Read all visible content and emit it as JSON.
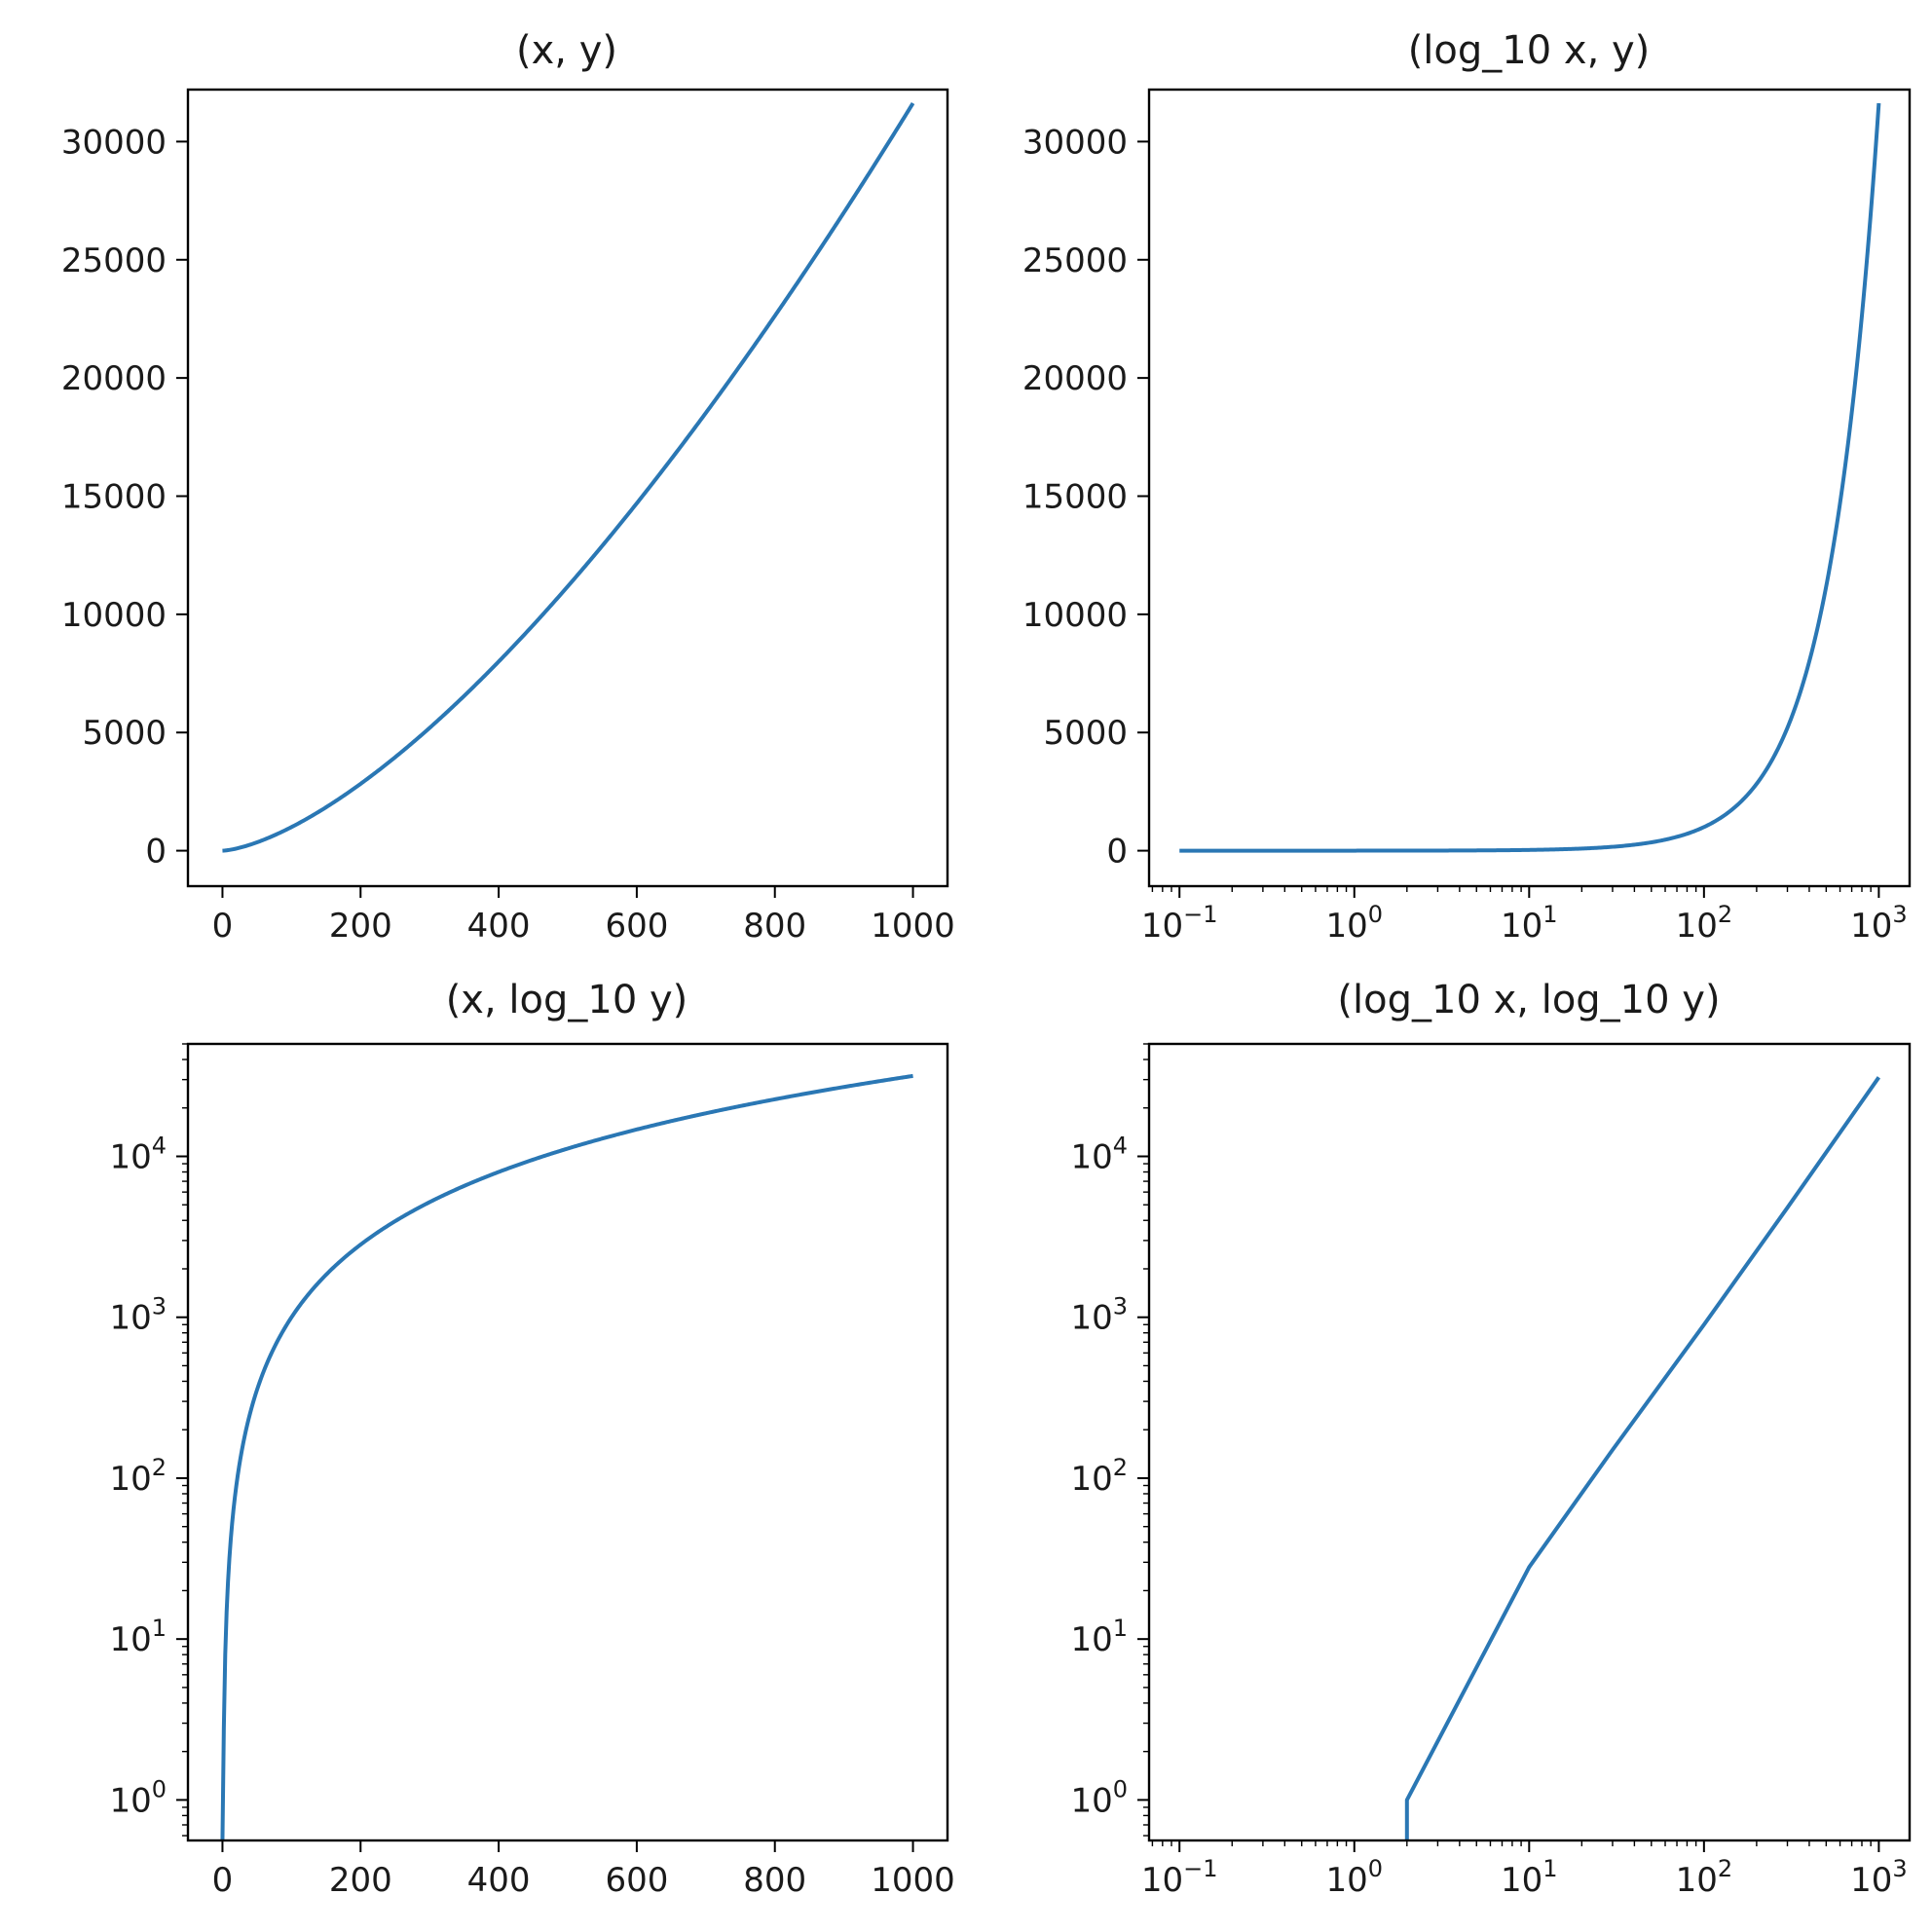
{
  "figure": {
    "layout": "2x2 grid"
  },
  "chart_data": [
    {
      "type": "line",
      "title": "(x, y)",
      "xscale": "linear",
      "yscale": "linear",
      "xlim": [
        -50,
        1050
      ],
      "ylim": [
        -1500,
        32200
      ],
      "xticks": [
        0,
        200,
        400,
        600,
        800,
        1000
      ],
      "xticklabels": [
        "0",
        "200",
        "400",
        "600",
        "800",
        "1000"
      ],
      "yticks": [
        0,
        5000,
        10000,
        15000,
        20000,
        25000,
        30000
      ],
      "yticklabels": [
        "0",
        "5000",
        "10000",
        "15000",
        "20000",
        "25000",
        "30000"
      ],
      "series": [
        {
          "color": "#2a77b4",
          "x_range": [
            0,
            1000
          ],
          "formula": "y = x^1.5"
        }
      ]
    },
    {
      "type": "line",
      "title": "(log_10 x, y)",
      "xscale": "log",
      "yscale": "linear",
      "xlim": [
        0.067,
        1500
      ],
      "ylim": [
        -1500,
        32200
      ],
      "xticks": [
        0.1,
        1,
        10,
        100,
        1000
      ],
      "xticklabels": [
        {
          "base": "10",
          "exp": "−1"
        },
        {
          "base": "10",
          "exp": "0"
        },
        {
          "base": "10",
          "exp": "1"
        },
        {
          "base": "10",
          "exp": "2"
        },
        {
          "base": "10",
          "exp": "3"
        }
      ],
      "yticks": [
        0,
        5000,
        10000,
        15000,
        20000,
        25000,
        30000
      ],
      "yticklabels": [
        "0",
        "5000",
        "10000",
        "15000",
        "20000",
        "25000",
        "30000"
      ],
      "series": [
        {
          "color": "#2a77b4",
          "x_range": [
            0.1,
            1000
          ],
          "formula": "y = x^1.5"
        }
      ]
    },
    {
      "type": "line",
      "title": "(x, log_10 y)",
      "xscale": "linear",
      "yscale": "log",
      "xlim": [
        -50,
        1050
      ],
      "ylim": [
        0.56,
        50000
      ],
      "xticks": [
        0,
        200,
        400,
        600,
        800,
        1000
      ],
      "xticklabels": [
        "0",
        "200",
        "400",
        "600",
        "800",
        "1000"
      ],
      "yticks": [
        1,
        10,
        100,
        1000,
        10000
      ],
      "yticklabels": [
        {
          "base": "10",
          "exp": "0"
        },
        {
          "base": "10",
          "exp": "1"
        },
        {
          "base": "10",
          "exp": "2"
        },
        {
          "base": "10",
          "exp": "3"
        },
        {
          "base": "10",
          "exp": "4"
        }
      ],
      "series": [
        {
          "color": "#2a77b4",
          "x_range": [
            0,
            1000
          ],
          "formula": "y = x^1.5"
        }
      ]
    },
    {
      "type": "line",
      "title": "(log_10 x, log_10 y)",
      "xscale": "log",
      "yscale": "log",
      "xlim": [
        0.067,
        1500
      ],
      "ylim": [
        0.56,
        50000
      ],
      "xticks": [
        0.1,
        1,
        10,
        100,
        1000
      ],
      "xticklabels": [
        {
          "base": "10",
          "exp": "−1"
        },
        {
          "base": "10",
          "exp": "0"
        },
        {
          "base": "10",
          "exp": "1"
        },
        {
          "base": "10",
          "exp": "2"
        },
        {
          "base": "10",
          "exp": "3"
        }
      ],
      "yticks": [
        1,
        10,
        100,
        1000,
        10000
      ],
      "yticklabels": [
        {
          "base": "10",
          "exp": "0"
        },
        {
          "base": "10",
          "exp": "1"
        },
        {
          "base": "10",
          "exp": "2"
        },
        {
          "base": "10",
          "exp": "3"
        },
        {
          "base": "10",
          "exp": "4"
        }
      ],
      "series": [
        {
          "color": "#2a77b4",
          "x": [
            2,
            2,
            4,
            10,
            30,
            100,
            300,
            1000
          ],
          "y": [
            0.56,
            1,
            4.2,
            28,
            150,
            900,
            4800,
            31000
          ]
        }
      ]
    }
  ]
}
